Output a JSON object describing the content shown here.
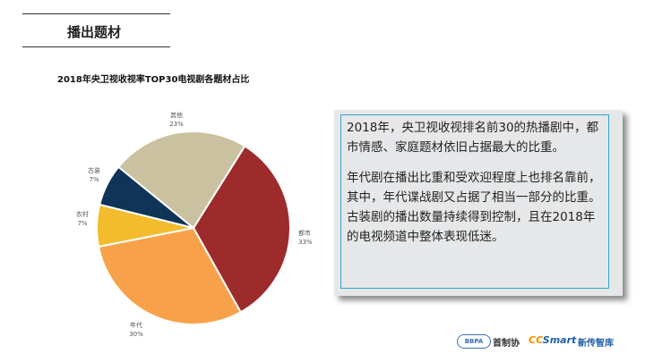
{
  "header": {
    "title": "播出题材"
  },
  "chart_data": {
    "type": "pie",
    "title": "2018年央卫视收视率TOP30电视剧各题材占比",
    "slices": [
      {
        "name": "都市",
        "value": 33,
        "label": "33%",
        "color": "#9e2b2b"
      },
      {
        "name": "年代",
        "value": 30,
        "label": "30%",
        "color": "#f7a24a"
      },
      {
        "name": "农村",
        "value": 7,
        "label": "7%",
        "color": "#f2bc2d"
      },
      {
        "name": "古装",
        "value": 7,
        "label": "7%",
        "color": "#0f3457"
      },
      {
        "name": "其他",
        "value": 23,
        "label": "23%",
        "color": "#c9c1a0"
      }
    ]
  },
  "text_box": {
    "paragraphs": [
      "2018年，央卫视收视排名前30的热播剧中，都市情感、家庭题材依旧占据最大的比重。",
      "年代剧在播出比重和受欢迎程度上也排名靠前，其中，年代谍战剧又占据了相当一部分的比重。",
      "古装剧的播出数量持续得到控制，且在2018年的电视频道中整体表现低迷。"
    ]
  },
  "logos": {
    "bbpa_badge": "BBPA",
    "bbpa_name": "首制协",
    "cc_part1": "CC",
    "cc_part2": "Smart",
    "cc_name": "新传智库"
  }
}
